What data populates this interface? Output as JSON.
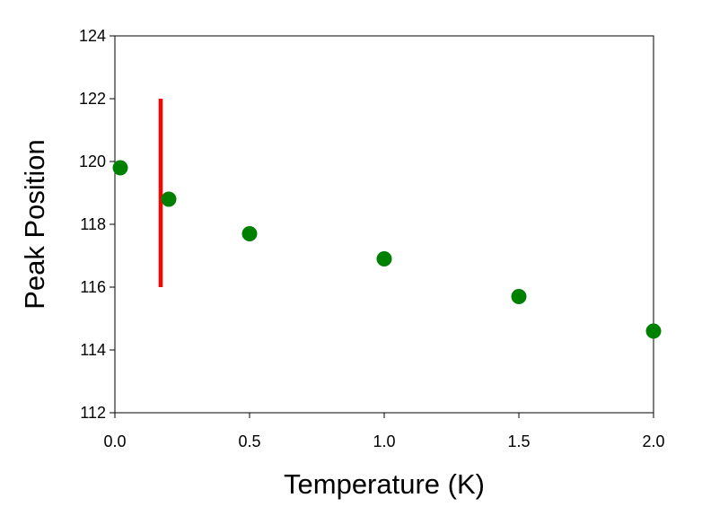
{
  "chart_data": {
    "type": "scatter",
    "title": "",
    "xlabel": "Temperature  (K)",
    "ylabel": "Peak Position",
    "xlim": [
      0.0,
      2.0
    ],
    "ylim": [
      112,
      124
    ],
    "x_ticks": [
      "0.0",
      "0.5",
      "1.0",
      "1.5",
      "2.0"
    ],
    "y_ticks": [
      "112",
      "114",
      "116",
      "118",
      "120",
      "122",
      "124"
    ],
    "grid": false,
    "legend": "none",
    "series": [
      {
        "color": "#008000",
        "points": [
          {
            "x": 0.02,
            "y": 119.8
          },
          {
            "x": 0.2,
            "y": 118.8
          },
          {
            "x": 0.5,
            "y": 117.7
          },
          {
            "x": 1.0,
            "y": 116.9
          },
          {
            "x": 1.5,
            "y": 115.7
          },
          {
            "x": 2.0,
            "y": 114.6
          }
        ]
      }
    ],
    "annotations": [
      {
        "type": "vertical-line",
        "x": 0.17,
        "y_start": 116,
        "y_end": 122,
        "color": "#ff0000"
      }
    ]
  }
}
